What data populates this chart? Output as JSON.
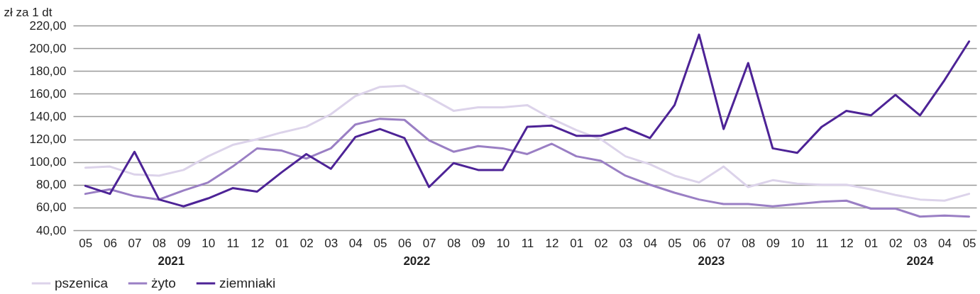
{
  "chart_data": {
    "type": "line",
    "ylabel": "zł za 1 dt",
    "categories": [
      "05",
      "06",
      "07",
      "08",
      "09",
      "10",
      "11",
      "12",
      "01",
      "02",
      "03",
      "04",
      "05",
      "06",
      "07",
      "08",
      "09",
      "10",
      "11",
      "12",
      "01",
      "02",
      "03",
      "04",
      "05",
      "06",
      "07",
      "08",
      "09",
      "10",
      "11",
      "12",
      "01",
      "02",
      "03",
      "04",
      "05"
    ],
    "annotations": [
      "2021",
      "2022",
      "2023",
      "2024"
    ],
    "series": [
      {
        "name": "pszenica",
        "color": "#dcd3ea",
        "values": [
          95,
          96,
          89,
          88,
          93,
          105,
          115,
          120,
          126,
          131,
          142,
          158,
          166,
          167,
          157,
          145,
          148,
          148,
          150,
          138,
          128,
          120,
          105,
          98,
          88,
          82,
          96,
          78,
          84,
          81,
          80,
          80,
          76,
          71,
          67,
          66,
          72
        ]
      },
      {
        "name": "żyto",
        "color": "#9a7fc4",
        "values": [
          72,
          76,
          70,
          67,
          75,
          82,
          96,
          112,
          110,
          103,
          112,
          133,
          138,
          137,
          119,
          109,
          114,
          112,
          107,
          116,
          105,
          101,
          88,
          80,
          73,
          67,
          63,
          63,
          61,
          63,
          65,
          66,
          59,
          59,
          52,
          53,
          52
        ]
      },
      {
        "name": "ziemniaki",
        "color": "#4d2396",
        "values": [
          79,
          72,
          109,
          67,
          61,
          68,
          77,
          74,
          91,
          107,
          94,
          122,
          129,
          121,
          78,
          99,
          93,
          93,
          131,
          132,
          123,
          123,
          130,
          121,
          150,
          212,
          129,
          187,
          112,
          108,
          131,
          145,
          141,
          159,
          141,
          172,
          206
        ]
      }
    ],
    "ylim": [
      40,
      220
    ],
    "yticks": [
      {
        "value": 40,
        "label": "40,00"
      },
      {
        "value": 60,
        "label": "60,00"
      },
      {
        "value": 80,
        "label": "80,00"
      },
      {
        "value": 100,
        "label": "100,00"
      },
      {
        "value": 120,
        "label": "120,00"
      },
      {
        "value": 140,
        "label": "140,00"
      },
      {
        "value": 160,
        "label": "160,00"
      },
      {
        "value": 180,
        "label": "180,00"
      },
      {
        "value": 200,
        "label": "200,00"
      },
      {
        "value": 220,
        "label": "220,00"
      }
    ],
    "grid": "y",
    "legend": "bottom left",
    "marker": "none",
    "line_style": "solid"
  }
}
